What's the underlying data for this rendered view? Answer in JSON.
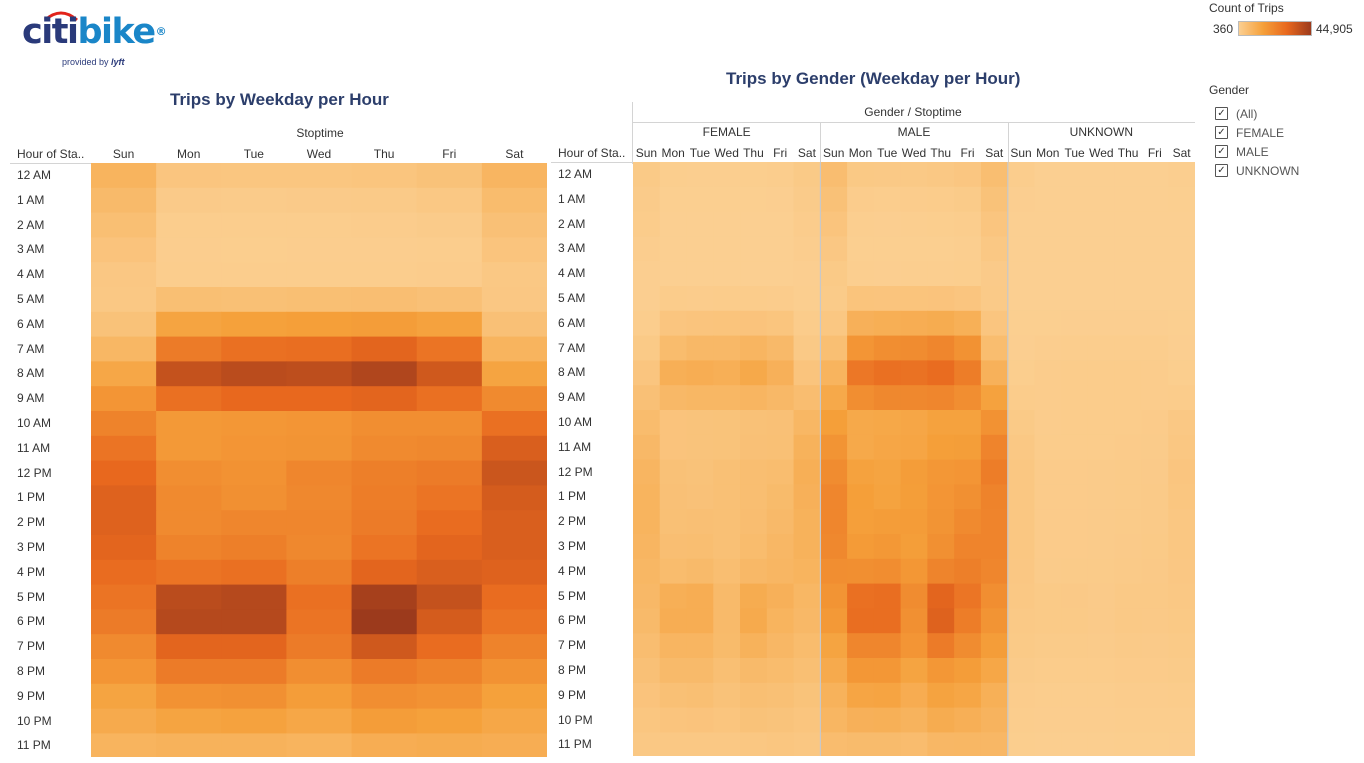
{
  "logo": {
    "part1": "citi",
    "part2": "bike",
    "reg": "®",
    "sub_prefix": "provided by",
    "sub_brand": "lyft"
  },
  "legend": {
    "title": "Count of Trips",
    "min_label": "360",
    "max_label": "44,905",
    "min": 360,
    "max": 44905,
    "colors": [
      "#fbcf91",
      "#f5a03a",
      "#e8681e",
      "#9c3a1c"
    ]
  },
  "filter": {
    "title": "Gender",
    "items": [
      "(All)",
      "FEMALE",
      "MALE",
      "UNKNOWN"
    ]
  },
  "chart_data": [
    {
      "type": "heatmap",
      "title": "Trips by Weekday per Hour",
      "column_header": "Stoptime",
      "row_header": "Hour of Sta..",
      "columns": [
        "Sun",
        "Mon",
        "Tue",
        "Wed",
        "Thu",
        "Fri",
        "Sat"
      ],
      "rows": [
        "12 AM",
        "1 AM",
        "2 AM",
        "3 AM",
        "4 AM",
        "5 AM",
        "6 AM",
        "7 AM",
        "8 AM",
        "9 AM",
        "10 AM",
        "11 AM",
        "12 PM",
        "1 PM",
        "2 PM",
        "3 PM",
        "4 PM",
        "5 PM",
        "6 PM",
        "7 PM",
        "8 PM",
        "9 PM",
        "10 PM",
        "11 PM"
      ],
      "values": [
        [
          9000,
          3500,
          3200,
          3300,
          3600,
          4500,
          8500
        ],
        [
          7000,
          1800,
          1600,
          1800,
          1900,
          2500,
          6500
        ],
        [
          5500,
          1100,
          1000,
          1100,
          1200,
          1600,
          5000
        ],
        [
          4000,
          900,
          800,
          900,
          900,
          1100,
          3800
        ],
        [
          2800,
          1100,
          1000,
          1100,
          1100,
          1200,
          2600
        ],
        [
          2500,
          5500,
          5200,
          5500,
          5600,
          5000,
          2800
        ],
        [
          4500,
          14000,
          15000,
          15500,
          16000,
          14500,
          5000
        ],
        [
          8000,
          25000,
          28000,
          28500,
          31000,
          27000,
          9000
        ],
        [
          13000,
          37000,
          39000,
          38500,
          41000,
          35000,
          14000
        ],
        [
          18000,
          28000,
          30000,
          30000,
          31000,
          28000,
          21000
        ],
        [
          23000,
          17000,
          17500,
          18000,
          20000,
          20000,
          28000
        ],
        [
          27000,
          17000,
          18000,
          18500,
          21000,
          21500,
          33000
        ],
        [
          30000,
          20000,
          19000,
          22000,
          24000,
          25000,
          36000
        ],
        [
          32000,
          21000,
          19500,
          21500,
          24500,
          27000,
          34000
        ],
        [
          32000,
          21000,
          22000,
          22000,
          25000,
          29000,
          33000
        ],
        [
          31000,
          23000,
          24000,
          21500,
          27000,
          31000,
          33000
        ],
        [
          29000,
          27000,
          28000,
          24000,
          31000,
          33000,
          32000
        ],
        [
          27000,
          39000,
          40000,
          28000,
          43000,
          37000,
          29000
        ],
        [
          25000,
          40000,
          40000,
          27000,
          44905,
          34000,
          27000
        ],
        [
          21000,
          31000,
          31000,
          25000,
          35000,
          29000,
          23000
        ],
        [
          18000,
          25000,
          25000,
          20000,
          25000,
          23000,
          19000
        ],
        [
          14000,
          19000,
          19500,
          16000,
          20000,
          19000,
          15000
        ],
        [
          12000,
          14000,
          14500,
          13000,
          16000,
          15000,
          13000
        ],
        [
          9000,
          9500,
          9500,
          9000,
          11000,
          11500,
          11000
        ]
      ]
    },
    {
      "type": "heatmap",
      "title": "Trips by Gender (Weekday per Hour)",
      "column_header": "Gender / Stoptime",
      "row_header": "Hour of Sta..",
      "groups": [
        "FEMALE",
        "MALE",
        "UNKNOWN"
      ],
      "columns": [
        "Sun",
        "Mon",
        "Tue",
        "Wed",
        "Thu",
        "Fri",
        "Sat"
      ],
      "rows": [
        "12 AM",
        "1 AM",
        "2 AM",
        "3 AM",
        "4 AM",
        "5 AM",
        "6 AM",
        "7 AM",
        "8 AM",
        "9 AM",
        "10 AM",
        "11 AM",
        "12 PM",
        "1 PM",
        "2 PM",
        "3 PM",
        "4 PM",
        "5 PM",
        "6 PM",
        "7 PM",
        "8 PM",
        "9 PM",
        "10 PM",
        "11 PM"
      ],
      "values": {
        "FEMALE": [
          [
            2000,
            800,
            700,
            750,
            800,
            1000,
            2000
          ],
          [
            1600,
            500,
            450,
            500,
            500,
            600,
            1600
          ],
          [
            1300,
            360,
            360,
            360,
            360,
            400,
            1200
          ],
          [
            900,
            360,
            360,
            360,
            360,
            360,
            900
          ],
          [
            600,
            360,
            360,
            360,
            360,
            360,
            600
          ],
          [
            600,
            1300,
            1200,
            1300,
            1300,
            1200,
            700
          ],
          [
            1000,
            3500,
            3800,
            3900,
            4000,
            3600,
            1300
          ],
          [
            2000,
            6500,
            7500,
            7500,
            8500,
            7200,
            2300
          ],
          [
            3500,
            10500,
            11000,
            10500,
            12500,
            10000,
            3800
          ],
          [
            5000,
            7500,
            8000,
            8000,
            8500,
            7500,
            6000
          ],
          [
            6500,
            4000,
            4200,
            4300,
            4800,
            5000,
            8000
          ],
          [
            7500,
            4000,
            4200,
            4300,
            5000,
            5200,
            9500
          ],
          [
            8500,
            4800,
            4500,
            5200,
            5800,
            6200,
            10500
          ],
          [
            9000,
            5000,
            4700,
            5100,
            5800,
            6800,
            10000
          ],
          [
            9000,
            5100,
            5300,
            5200,
            6000,
            7200,
            9500
          ],
          [
            8500,
            5600,
            5800,
            5100,
            6500,
            7800,
            9500
          ],
          [
            8000,
            6500,
            7000,
            5800,
            7500,
            8200,
            9000
          ],
          [
            7500,
            10500,
            11000,
            7000,
            11500,
            10000,
            8000
          ],
          [
            7000,
            11000,
            11000,
            7000,
            12000,
            9000,
            7500
          ],
          [
            6000,
            8500,
            8500,
            6800,
            9500,
            7800,
            6500
          ],
          [
            5000,
            7000,
            7000,
            5500,
            7000,
            6500,
            5500
          ],
          [
            4000,
            5200,
            5400,
            4500,
            5500,
            5200,
            4300
          ],
          [
            3300,
            3800,
            4000,
            3600,
            4400,
            4200,
            3600
          ],
          [
            2500,
            2600,
            2600,
            2500,
            3000,
            3200,
            3000
          ]
        ],
        "MALE": [
          [
            6000,
            2400,
            2200,
            2300,
            2500,
            3100,
            5800
          ],
          [
            4800,
            1200,
            1100,
            1200,
            1300,
            1700,
            4400
          ],
          [
            3800,
            700,
            600,
            700,
            800,
            1100,
            3400
          ],
          [
            2800,
            500,
            450,
            500,
            500,
            700,
            2600
          ],
          [
            2000,
            700,
            600,
            700,
            700,
            800,
            1800
          ],
          [
            1700,
            3900,
            3700,
            3900,
            4000,
            3500,
            1900
          ],
          [
            3000,
            10000,
            10600,
            11000,
            11500,
            10300,
            3400
          ],
          [
            5500,
            18000,
            20000,
            20500,
            22000,
            19000,
            6200
          ],
          [
            9000,
            26000,
            28000,
            27500,
            29000,
            24500,
            9700
          ],
          [
            12500,
            20000,
            21500,
            21500,
            22000,
            20000,
            14500
          ],
          [
            15500,
            12500,
            12800,
            13200,
            14500,
            14500,
            19000
          ],
          [
            18500,
            12500,
            13200,
            13500,
            15500,
            15800,
            22500
          ],
          [
            20500,
            14500,
            14000,
            16000,
            17500,
            18000,
            24500
          ],
          [
            22000,
            15500,
            14300,
            15800,
            18000,
            19500,
            23000
          ],
          [
            22000,
            15400,
            16000,
            16200,
            18300,
            21000,
            22500
          ],
          [
            21500,
            16600,
            17400,
            15800,
            19500,
            22500,
            22500
          ],
          [
            20000,
            19800,
            20300,
            17600,
            22700,
            24000,
            22000
          ],
          [
            18500,
            28000,
            28500,
            20500,
            31000,
            26500,
            20000
          ],
          [
            17000,
            28500,
            28500,
            19500,
            32000,
            24500,
            18500
          ],
          [
            14000,
            22000,
            22000,
            18000,
            25000,
            20500,
            16000
          ],
          [
            12000,
            17500,
            17500,
            14000,
            17500,
            16000,
            13000
          ],
          [
            9500,
            13500,
            13800,
            11300,
            14200,
            13400,
            10300
          ],
          [
            8400,
            10000,
            10300,
            9300,
            11500,
            10500,
            9100
          ],
          [
            6300,
            6700,
            6700,
            6300,
            7800,
            8100,
            7800
          ]
        ],
        "UNKNOWN": [
          [
            1000,
            360,
            360,
            360,
            360,
            400,
            700
          ],
          [
            600,
            360,
            360,
            360,
            360,
            360,
            500
          ],
          [
            400,
            360,
            360,
            360,
            360,
            360,
            400
          ],
          [
            360,
            360,
            360,
            360,
            360,
            360,
            360
          ],
          [
            360,
            360,
            360,
            360,
            360,
            360,
            360
          ],
          [
            360,
            360,
            360,
            360,
            360,
            360,
            360
          ],
          [
            500,
            500,
            600,
            600,
            600,
            600,
            500
          ],
          [
            600,
            900,
            1000,
            1000,
            1100,
            1000,
            600
          ],
          [
            800,
            1200,
            1300,
            1300,
            1400,
            1200,
            800
          ],
          [
            1400,
            1200,
            1300,
            1300,
            1300,
            1200,
            1400
          ],
          [
            2000,
            1200,
            1300,
            1300,
            1400,
            1500,
            2500
          ],
          [
            2500,
            1300,
            1400,
            1400,
            1500,
            1600,
            3000
          ],
          [
            3000,
            1500,
            1500,
            1600,
            1700,
            1800,
            3500
          ],
          [
            3000,
            1500,
            1500,
            1600,
            1700,
            1900,
            3300
          ],
          [
            3000,
            1500,
            1500,
            1600,
            1700,
            1900,
            3000
          ],
          [
            3000,
            1500,
            1500,
            1600,
            1800,
            2000,
            3000
          ],
          [
            2800,
            1600,
            1700,
            1700,
            1900,
            2100,
            2800
          ],
          [
            2500,
            2000,
            2100,
            1800,
            2200,
            2200,
            2600
          ],
          [
            2300,
            2000,
            2000,
            1800,
            2200,
            2100,
            2400
          ],
          [
            2000,
            1700,
            1700,
            1600,
            1900,
            1800,
            2000
          ],
          [
            1600,
            1400,
            1400,
            1300,
            1500,
            1500,
            1700
          ],
          [
            1200,
            1100,
            1100,
            1100,
            1200,
            1200,
            1300
          ],
          [
            1000,
            900,
            900,
            900,
            1000,
            1000,
            1100
          ],
          [
            800,
            700,
            700,
            700,
            800,
            800,
            900
          ]
        ]
      }
    }
  ]
}
